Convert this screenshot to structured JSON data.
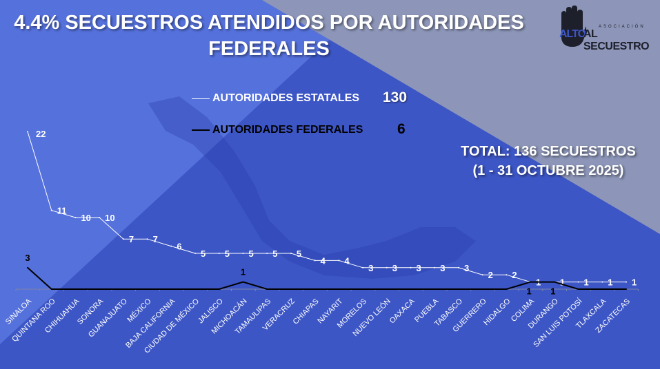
{
  "title": "4.4% SECUESTROS ATENDIDOS POR AUTORIDADES FEDERALES",
  "logo": {
    "top": "ASOCIACIÓN",
    "alto": "ALTO",
    "rest": "AL SECUESTRO"
  },
  "legend": [
    {
      "label": "AUTORIDADES ESTATALES",
      "total": "130",
      "color": "#ffffff"
    },
    {
      "label": "AUTORIDADES FEDERALES",
      "total": "6",
      "color": "#000000"
    }
  ],
  "total_box": {
    "line1": "TOTAL: 136 SECUESTROS",
    "line2": "(1 - 31 OCTUBRE 2025)"
  },
  "colors": {
    "background": "#3d56c6",
    "light_band": "#5571dc",
    "gray_band": "#8d96b8"
  },
  "chart_data": {
    "type": "line",
    "categories": [
      "SINALOA",
      "QUINTANA ROO",
      "CHIHUAHUA",
      "SONORA",
      "GUANAJUATO",
      "MÉXICO",
      "BAJA CALIFORNIA",
      "CIUDAD DE MÉXICO",
      "JALISCO",
      "MICHOACÁN",
      "TAMAULIPAS",
      "VERACRUZ",
      "CHIAPAS",
      "NAYARIT",
      "MORELOS",
      "NUEVO LEÓN",
      "OAXACA",
      "PUEBLA",
      "TABASCO",
      "GUERRERO",
      "HIDALGO",
      "COLIMA",
      "DURANGO",
      "SAN LUIS POTOSÍ",
      "TLAXCALA",
      "ZACATECAS"
    ],
    "series": [
      {
        "name": "AUTORIDADES ESTATALES",
        "color": "#ffffff",
        "values": [
          22,
          11,
          10,
          10,
          7,
          7,
          6,
          5,
          5,
          5,
          5,
          5,
          4,
          4,
          3,
          3,
          3,
          3,
          3,
          2,
          2,
          1,
          1,
          1,
          1,
          1
        ]
      },
      {
        "name": "AUTORIDADES FEDERALES",
        "color": "#000000",
        "values": [
          3,
          0,
          0,
          0,
          0,
          0,
          0,
          0,
          0,
          1,
          0,
          0,
          0,
          0,
          0,
          0,
          0,
          0,
          0,
          0,
          0,
          1,
          1,
          0,
          0,
          0
        ]
      }
    ],
    "data_labels_federal_shown_for_nonzero": true,
    "grid": false
  }
}
